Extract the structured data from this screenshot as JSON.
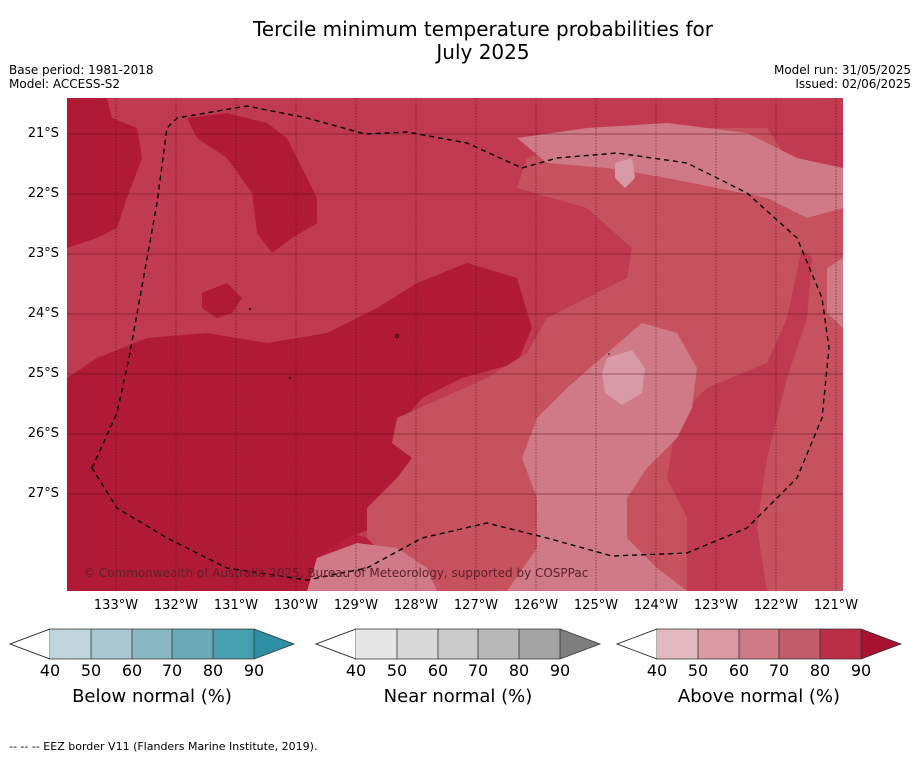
{
  "title_line1": "Tercile minimum temperature probabilities for",
  "title_line2": "July 2025",
  "base_period": "Base period: 1981-2018",
  "model": "Model: ACCESS-S2",
  "model_run": "Model run: 31/05/2025",
  "issued": "Issued: 02/06/2025",
  "lat_labels": [
    "21°S",
    "22°S",
    "23°S",
    "24°S",
    "25°S",
    "26°S",
    "27°S"
  ],
  "lon_labels": [
    "133°W",
    "132°W",
    "131°W",
    "130°W",
    "129°W",
    "128°W",
    "127°W",
    "126°W",
    "125°W",
    "124°W",
    "123°W",
    "122°W",
    "121°W"
  ],
  "copyright": "© Commonwealth of Australia 2025, Bureau of Meteorology, supported by COSPPac",
  "colorbars": [
    {
      "label": "Below normal (%)",
      "ticks": [
        "40",
        "50",
        "60",
        "70",
        "80",
        "90"
      ],
      "colors": [
        "#bdd5db",
        "#a7c8cf",
        "#8ab8c3",
        "#6aa9b8",
        "#479faf",
        "#2d8fa3"
      ]
    },
    {
      "label": "Near normal (%)",
      "ticks": [
        "40",
        "50",
        "60",
        "70",
        "80",
        "90"
      ],
      "colors": [
        "#e6e6e6",
        "#d9d9d9",
        "#cbcbcb",
        "#b8b8b8",
        "#a3a3a3",
        "#7e7e7e"
      ]
    },
    {
      "label": "Above normal (%)",
      "ticks": [
        "40",
        "50",
        "60",
        "70",
        "80",
        "90"
      ],
      "colors": [
        "#e4b8c0",
        "#d99aa4",
        "#cf7a86",
        "#c45c6b",
        "#b92f48",
        "#a8112f"
      ]
    }
  ],
  "eez_note": "--  --  -- EEZ border V11 (Flanders Marine Institute, 2019)."
}
